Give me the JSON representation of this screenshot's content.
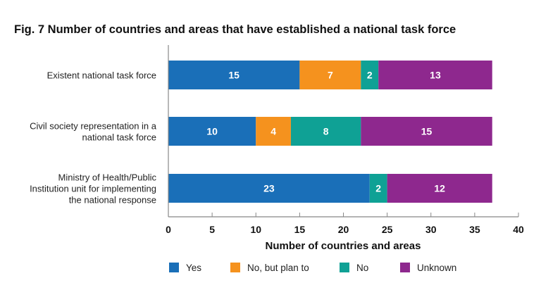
{
  "chart_data": {
    "type": "bar",
    "orientation": "horizontal",
    "stacked": true,
    "title": "Fig. 7  Number of countries and areas that have established a national task force",
    "xlabel": "Number of countries and areas",
    "ylabel": "",
    "xlim": [
      0,
      40
    ],
    "xticks": [
      0,
      5,
      10,
      15,
      20,
      25,
      30,
      35,
      40
    ],
    "grid": false,
    "legend_position": "bottom",
    "categories": [
      [
        "Existent national task force"
      ],
      [
        "Civil society representation in a",
        "national task force"
      ],
      [
        "Ministry of Health/Public",
        "Institution unit for implementing",
        "the national response"
      ]
    ],
    "series": [
      {
        "name": "Yes",
        "color": "#1a6fb8",
        "values": [
          15,
          10,
          23
        ]
      },
      {
        "name": "No, but plan to",
        "color": "#f5921e",
        "values": [
          7,
          4,
          0
        ]
      },
      {
        "name": "No",
        "color": "#0fa195",
        "values": [
          2,
          8,
          2
        ]
      },
      {
        "name": "Unknown",
        "color": "#8e288e",
        "values": [
          13,
          15,
          12
        ]
      }
    ]
  }
}
